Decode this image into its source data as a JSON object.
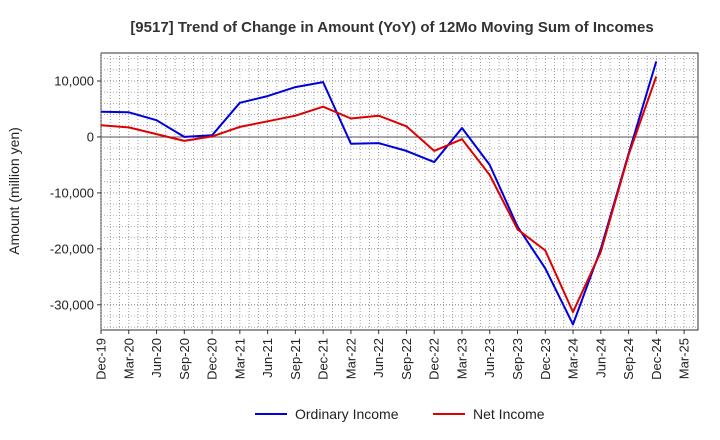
{
  "chart_data": {
    "type": "line",
    "title": "[9517]  Trend of Change in Amount (YoY) of 12Mo Moving Sum of Incomes",
    "xlabel": "",
    "ylabel": "Amount (million yen)",
    "ylim": [
      -34500,
      15000
    ],
    "yticks": [
      10000,
      0,
      -10000,
      -20000,
      -30000
    ],
    "ytick_labels": [
      "10,000",
      "0",
      "-10,000",
      "-20,000",
      "-30,000"
    ],
    "x_tick_labels": [
      "Dec-19",
      "Mar-20",
      "Jun-20",
      "Sep-20",
      "Dec-20",
      "Mar-21",
      "Jun-21",
      "Sep-21",
      "Dec-21",
      "Mar-22",
      "Jun-22",
      "Sep-22",
      "Dec-22",
      "Mar-23",
      "Jun-23",
      "Sep-23",
      "Dec-23",
      "Mar-24",
      "Jun-24",
      "Sep-24",
      "Dec-24",
      "Mar-25"
    ],
    "grid": true,
    "legend_position": "bottom-center",
    "series": [
      {
        "name": "Ordinary Income",
        "color": "#0000dd",
        "values": [
          4500,
          4400,
          3000,
          0,
          300,
          6100,
          7300,
          8900,
          9800,
          -1200,
          -1100,
          -2500,
          -4500,
          1600,
          -5000,
          -16000,
          -23500,
          -33500,
          -20000,
          -3000,
          13500
        ]
      },
      {
        "name": "Net Income",
        "color": "#dd0000",
        "values": [
          2100,
          1700,
          500,
          -700,
          100,
          1800,
          2800,
          3800,
          5400,
          3300,
          3800,
          1900,
          -2500,
          -400,
          -6800,
          -16500,
          -20300,
          -31300,
          -20500,
          -3200,
          10800
        ]
      }
    ]
  }
}
